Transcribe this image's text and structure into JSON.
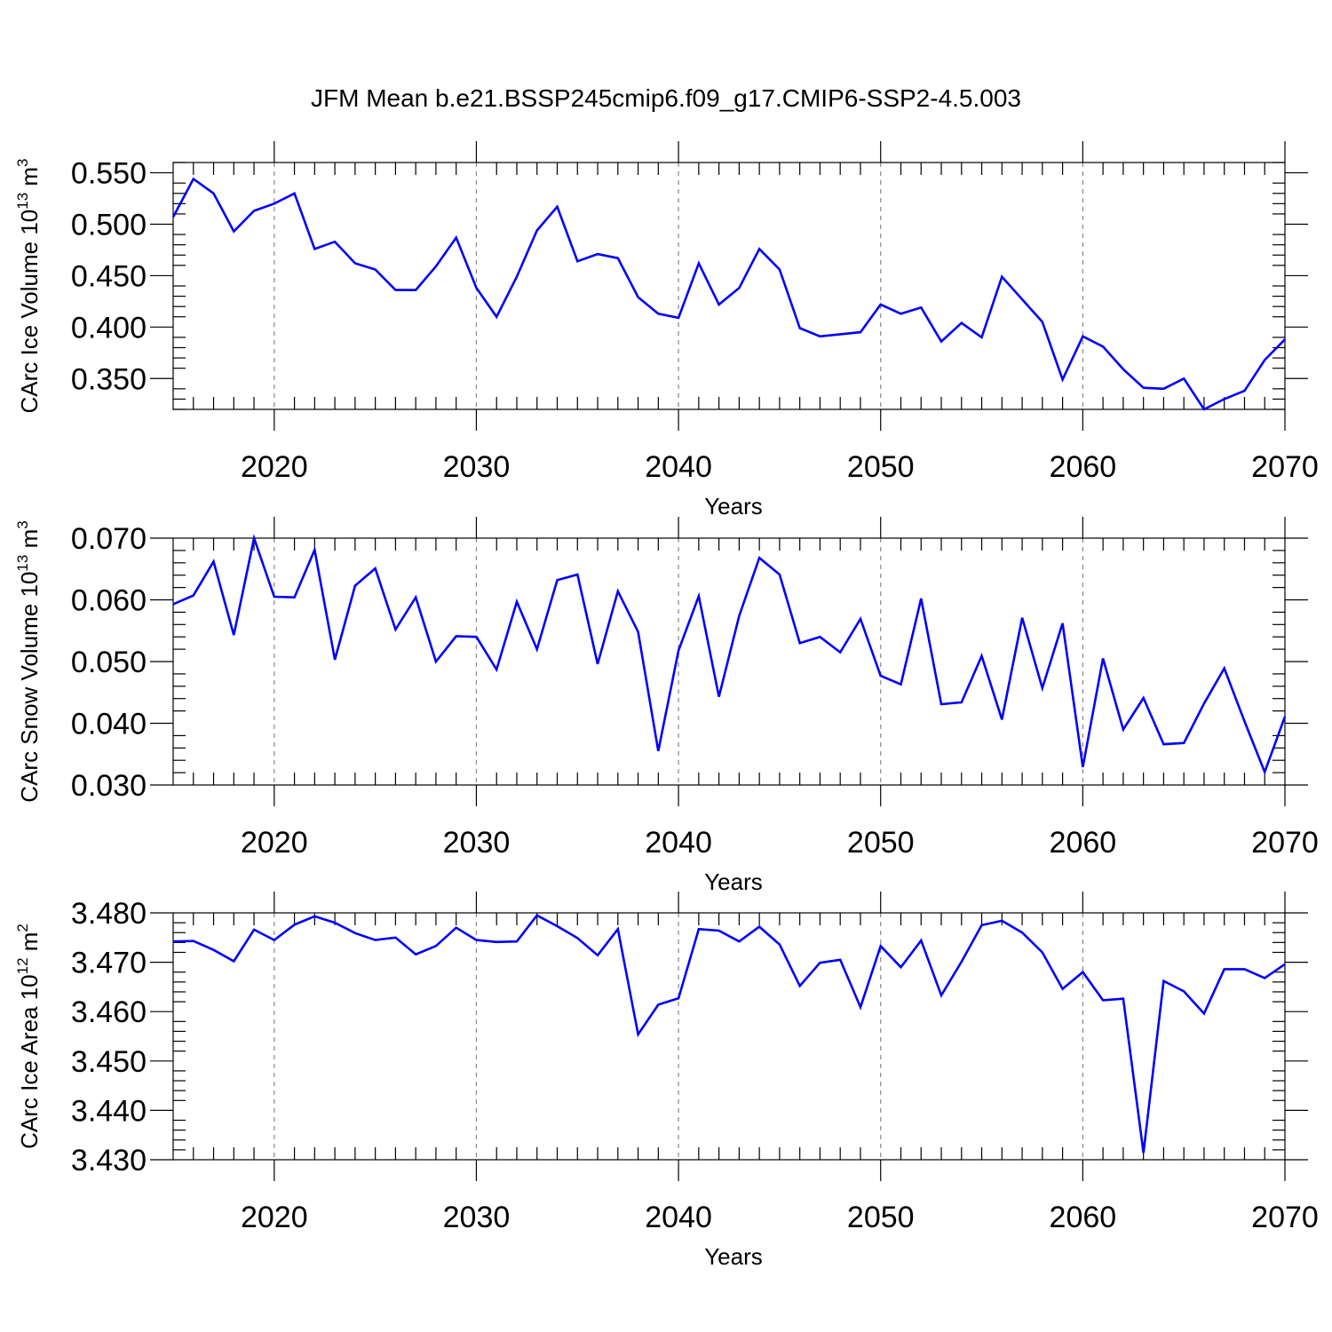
{
  "title": "JFM Mean b.e21.BSSP245cmip6.f09_g17.CMIP6-SSP2-4.5.003",
  "colors": {
    "line": "#0000ff",
    "grid": "#888888",
    "frame": "#000000"
  },
  "chart_data": [
    {
      "type": "line",
      "xlabel": "Years",
      "ylabel": {
        "text": "CArc Ice Volume 10",
        "sup1": "13",
        "mid": " m",
        "sup2": "3"
      },
      "xlim": [
        2015,
        2070
      ],
      "ylim": [
        0.32,
        0.56
      ],
      "yticks": [
        0.35,
        0.4,
        0.45,
        0.5,
        0.55
      ],
      "ytick_labels": [
        "0.350",
        "0.400",
        "0.450",
        "0.500",
        "0.550"
      ],
      "xticks": [
        2020,
        2030,
        2040,
        2050,
        2060,
        2070
      ],
      "xtick_labels": [
        "2020",
        "2030",
        "2040",
        "2050",
        "2060",
        "2070"
      ],
      "grid": "vertical dashed at major x ticks",
      "x": [
        2015,
        2016,
        2017,
        2018,
        2019,
        2020,
        2021,
        2022,
        2023,
        2024,
        2025,
        2026,
        2027,
        2028,
        2029,
        2030,
        2031,
        2032,
        2033,
        2034,
        2035,
        2036,
        2037,
        2038,
        2039,
        2040,
        2041,
        2042,
        2043,
        2044,
        2045,
        2046,
        2047,
        2048,
        2049,
        2050,
        2051,
        2052,
        2053,
        2054,
        2055,
        2056,
        2057,
        2058,
        2059,
        2060,
        2061,
        2062,
        2063,
        2064,
        2065,
        2066,
        2067,
        2068,
        2069,
        2070
      ],
      "values": [
        0.507,
        0.544,
        0.53,
        0.493,
        0.513,
        0.52,
        0.53,
        0.476,
        0.483,
        0.462,
        0.456,
        0.436,
        0.436,
        0.459,
        0.487,
        0.438,
        0.41,
        0.449,
        0.494,
        0.517,
        0.464,
        0.471,
        0.467,
        0.429,
        0.413,
        0.409,
        0.462,
        0.422,
        0.438,
        0.476,
        0.456,
        0.399,
        0.391,
        0.393,
        0.395,
        0.422,
        0.413,
        0.419,
        0.386,
        0.404,
        0.39,
        0.449,
        0.427,
        0.405,
        0.349,
        0.391,
        0.381,
        0.359,
        0.341,
        0.34,
        0.35,
        0.32,
        0.33,
        0.338,
        0.368,
        0.388
      ]
    },
    {
      "type": "line",
      "xlabel": "Years",
      "ylabel": {
        "text": "CArc Snow Volume 10",
        "sup1": "13",
        "mid": " m",
        "sup2": "3"
      },
      "xlim": [
        2015,
        2070
      ],
      "ylim": [
        0.03,
        0.07
      ],
      "yticks": [
        0.03,
        0.04,
        0.05,
        0.06,
        0.07
      ],
      "ytick_labels": [
        "0.030",
        "0.040",
        "0.050",
        "0.060",
        "0.070"
      ],
      "xticks": [
        2020,
        2030,
        2040,
        2050,
        2060,
        2070
      ],
      "xtick_labels": [
        "2020",
        "2030",
        "2040",
        "2050",
        "2060",
        "2070"
      ],
      "grid": "vertical dashed at major x ticks",
      "x": [
        2015,
        2016,
        2017,
        2018,
        2019,
        2020,
        2021,
        2022,
        2023,
        2024,
        2025,
        2026,
        2027,
        2028,
        2029,
        2030,
        2031,
        2032,
        2033,
        2034,
        2035,
        2036,
        2037,
        2038,
        2039,
        2040,
        2041,
        2042,
        2043,
        2044,
        2045,
        2046,
        2047,
        2048,
        2049,
        2050,
        2051,
        2052,
        2053,
        2054,
        2055,
        2056,
        2057,
        2058,
        2059,
        2060,
        2061,
        2062,
        2063,
        2064,
        2065,
        2066,
        2067,
        2068,
        2069,
        2070
      ],
      "values": [
        0.0593,
        0.0607,
        0.0662,
        0.0543,
        0.07,
        0.0605,
        0.0604,
        0.0681,
        0.0503,
        0.0623,
        0.0651,
        0.0552,
        0.0604,
        0.05,
        0.0541,
        0.054,
        0.0487,
        0.0597,
        0.052,
        0.0632,
        0.0641,
        0.0496,
        0.0614,
        0.0548,
        0.0355,
        0.0518,
        0.0606,
        0.0443,
        0.0574,
        0.0668,
        0.0641,
        0.053,
        0.054,
        0.0515,
        0.0569,
        0.0477,
        0.0463,
        0.0602,
        0.0431,
        0.0434,
        0.0509,
        0.0406,
        0.0571,
        0.0457,
        0.0562,
        0.0329,
        0.0505,
        0.039,
        0.0441,
        0.0366,
        0.0368,
        0.0432,
        0.0489,
        0.0403,
        0.0321,
        0.0411
      ]
    },
    {
      "type": "line",
      "xlabel": "Years",
      "ylabel": {
        "text": "CArc Ice Area 10",
        "sup1": "12",
        "mid": " m",
        "sup2": "2"
      },
      "xlim": [
        2015,
        2070
      ],
      "ylim": [
        3.43,
        3.48
      ],
      "yticks": [
        3.43,
        3.44,
        3.45,
        3.46,
        3.47,
        3.48
      ],
      "ytick_labels": [
        "3.430",
        "3.440",
        "3.450",
        "3.460",
        "3.470",
        "3.480"
      ],
      "xticks": [
        2020,
        2030,
        2040,
        2050,
        2060,
        2070
      ],
      "xtick_labels": [
        "2020",
        "2030",
        "2040",
        "2050",
        "2060",
        "2070"
      ],
      "grid": "vertical dashed at major x ticks",
      "x": [
        2015,
        2016,
        2017,
        2018,
        2019,
        2020,
        2021,
        2022,
        2023,
        2024,
        2025,
        2026,
        2027,
        2028,
        2029,
        2030,
        2031,
        2032,
        2033,
        2034,
        2035,
        2036,
        2037,
        2038,
        2039,
        2040,
        2041,
        2042,
        2043,
        2044,
        2045,
        2046,
        2047,
        2048,
        2049,
        2050,
        2051,
        2052,
        2053,
        2054,
        2055,
        2056,
        2057,
        2058,
        2059,
        2060,
        2061,
        2062,
        2063,
        2064,
        2065,
        2066,
        2067,
        2068,
        2069,
        2070
      ],
      "values": [
        3.4742,
        3.4743,
        3.4725,
        3.4702,
        3.4766,
        3.4745,
        3.4776,
        3.4793,
        3.478,
        3.4759,
        3.4745,
        3.475,
        3.4716,
        3.4733,
        3.477,
        3.4745,
        3.4741,
        3.4742,
        3.4795,
        3.4773,
        3.4749,
        3.4714,
        3.4767,
        3.4554,
        3.4614,
        3.4627,
        3.4767,
        3.4764,
        3.4742,
        3.4772,
        3.4736,
        3.4652,
        3.4699,
        3.4705,
        3.4609,
        3.4733,
        3.469,
        3.4744,
        3.4633,
        3.4701,
        3.4775,
        3.4784,
        3.476,
        3.472,
        3.4646,
        3.468,
        3.4623,
        3.4626,
        3.4314,
        3.4662,
        3.4641,
        3.4596,
        3.4686,
        3.4686,
        3.4668,
        3.4696
      ]
    }
  ]
}
